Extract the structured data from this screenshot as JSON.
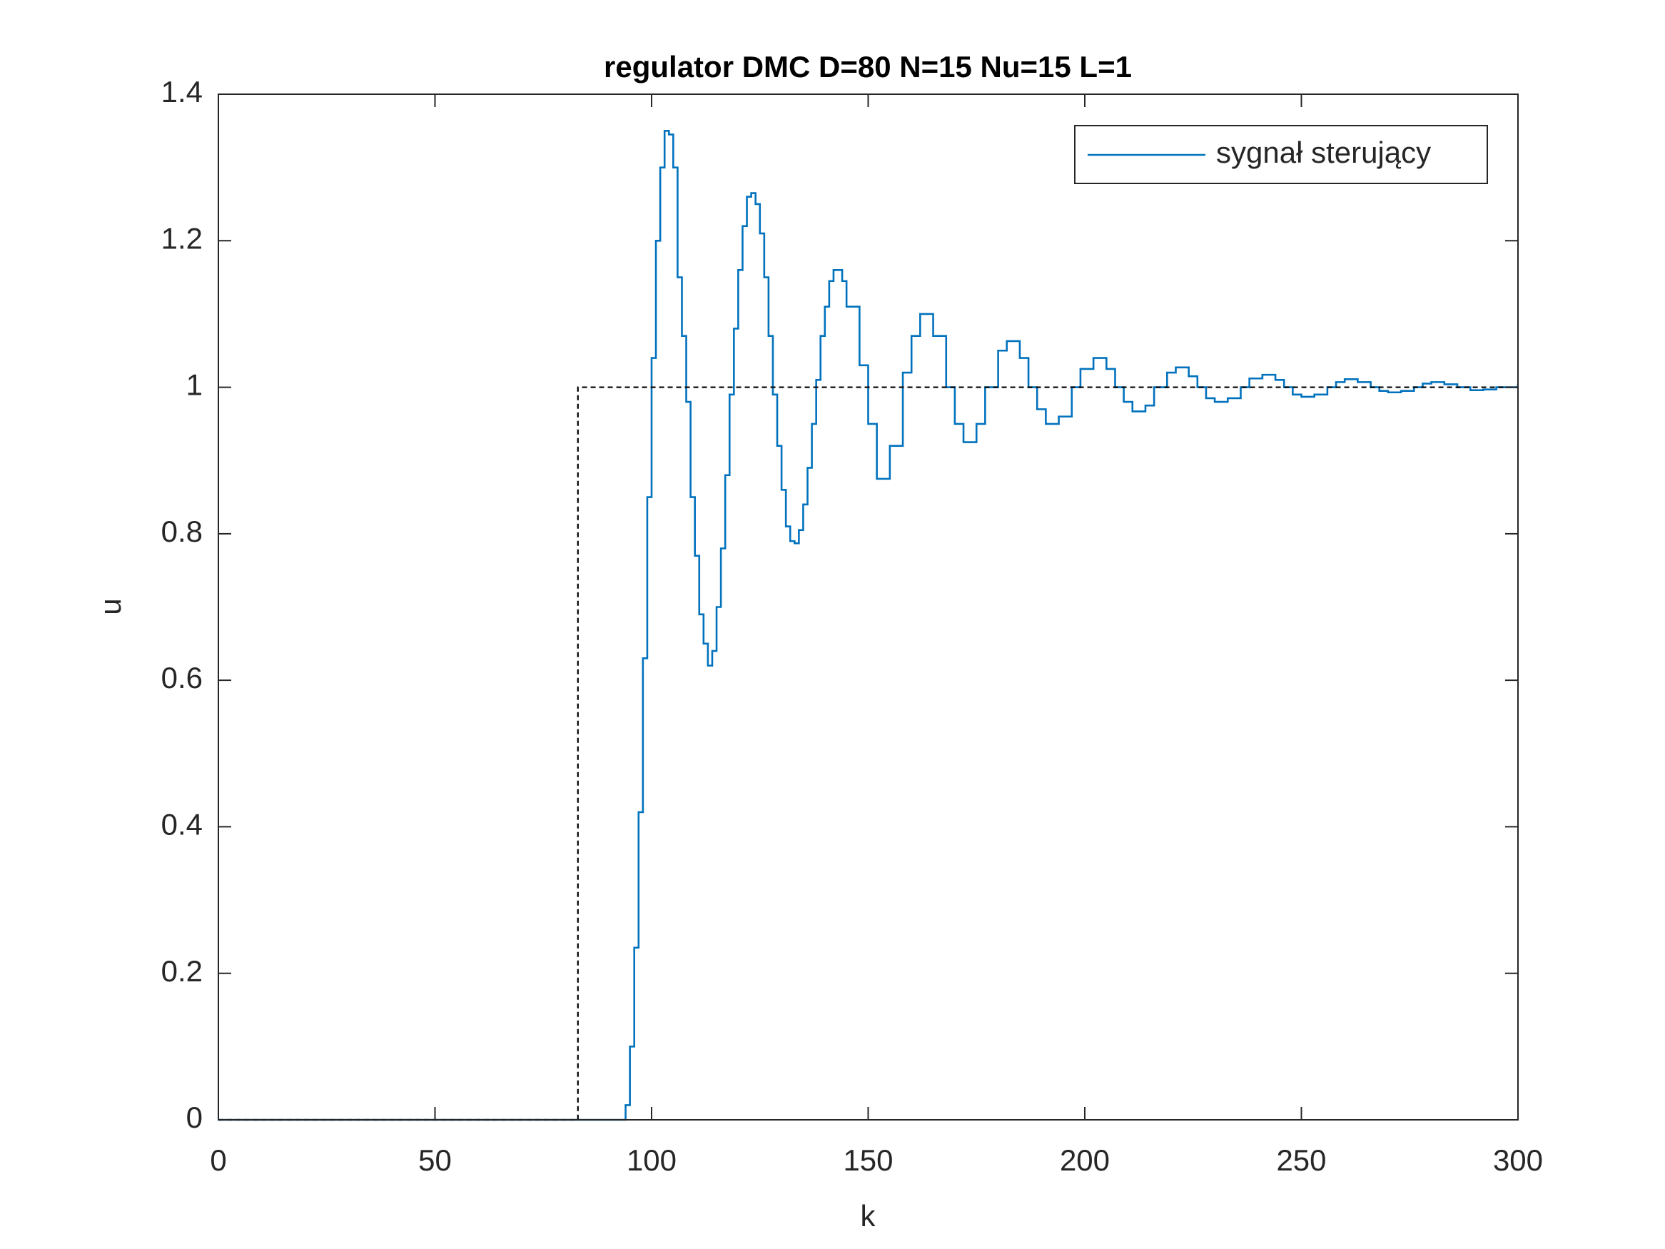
{
  "chart_data": {
    "type": "stairs",
    "title": "regulator DMC D=80 N=15 Nu=15 L=1",
    "xlabel": "k",
    "ylabel": "u",
    "xlim": [
      0,
      300
    ],
    "ylim": [
      0,
      1.4
    ],
    "xticks": [
      0,
      50,
      100,
      150,
      200,
      250,
      300
    ],
    "yticks": [
      0,
      0.2,
      0.4,
      0.6,
      0.8,
      1,
      1.2,
      1.4
    ],
    "grid": false,
    "legend": "northeast",
    "series": [
      {
        "name": "sygnał sterujący",
        "color": "#0072bd",
        "style": "solid",
        "x": [
          0,
          93,
          94,
          95,
          96,
          97,
          98,
          99,
          100,
          101,
          102,
          103,
          104,
          105,
          106,
          107,
          108,
          109,
          110,
          111,
          112,
          113,
          114,
          115,
          116,
          117,
          118,
          119,
          120,
          121,
          122,
          123,
          124,
          125,
          126,
          127,
          128,
          129,
          130,
          131,
          132,
          133,
          134,
          135,
          136,
          137,
          138,
          139,
          140,
          141,
          142,
          143,
          144,
          145,
          148,
          150,
          152,
          155,
          158,
          160,
          162,
          165,
          168,
          170,
          172,
          175,
          177,
          180,
          182,
          185,
          187,
          189,
          191,
          194,
          197,
          199,
          202,
          205,
          207,
          209,
          211,
          214,
          216,
          219,
          221,
          224,
          226,
          228,
          230,
          233,
          236,
          238,
          241,
          244,
          246,
          248,
          250,
          253,
          256,
          258,
          260,
          263,
          266,
          268,
          270,
          273,
          276,
          278,
          280,
          283,
          286,
          289,
          292,
          295,
          300
        ],
        "values": [
          0,
          0,
          0.02,
          0.1,
          0.235,
          0.42,
          0.63,
          0.85,
          1.04,
          1.2,
          1.3,
          1.35,
          1.345,
          1.3,
          1.15,
          1.07,
          0.98,
          0.85,
          0.77,
          0.69,
          0.65,
          0.62,
          0.64,
          0.7,
          0.78,
          0.88,
          0.99,
          1.08,
          1.16,
          1.22,
          1.26,
          1.265,
          1.25,
          1.21,
          1.15,
          1.07,
          0.99,
          0.92,
          0.86,
          0.81,
          0.79,
          0.787,
          0.805,
          0.84,
          0.89,
          0.95,
          1.01,
          1.07,
          1.11,
          1.145,
          1.16,
          1.16,
          1.145,
          1.11,
          1.03,
          0.95,
          0.875,
          0.92,
          1.02,
          1.07,
          1.1,
          1.07,
          1.0,
          0.95,
          0.925,
          0.95,
          1.0,
          1.05,
          1.063,
          1.04,
          1.0,
          0.97,
          0.95,
          0.96,
          1.0,
          1.025,
          1.04,
          1.025,
          1.0,
          0.98,
          0.967,
          0.975,
          1.0,
          1.02,
          1.027,
          1.015,
          1.0,
          0.985,
          0.98,
          0.985,
          1.0,
          1.012,
          1.017,
          1.01,
          1.0,
          0.99,
          0.987,
          0.99,
          1.0,
          1.007,
          1.011,
          1.007,
          1.0,
          0.995,
          0.993,
          0.995,
          1.0,
          1.005,
          1.007,
          1.004,
          1.0,
          0.996,
          0.997,
          1.0,
          1.005
        ]
      },
      {
        "color": "#000000",
        "style": "dashed",
        "x": [
          0,
          83,
          300
        ],
        "values": [
          0,
          1,
          1
        ]
      }
    ]
  }
}
